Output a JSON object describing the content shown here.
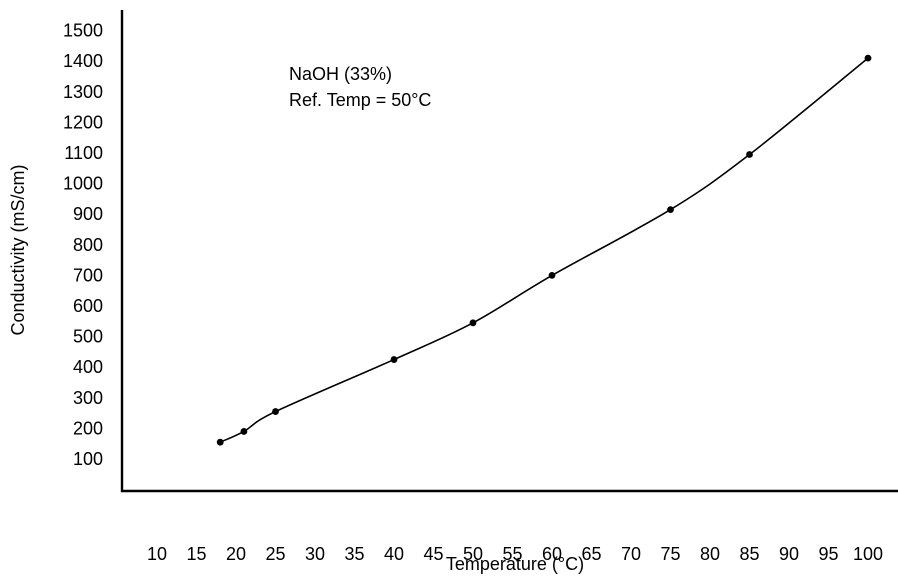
{
  "chart_data": {
    "type": "line",
    "title": "",
    "xlabel": "Temperature (°C)",
    "ylabel": "Conductivity (mS/cm)",
    "x_ticks": [
      "10",
      "15",
      "20",
      "25",
      "30",
      "35",
      "40",
      "45",
      "50",
      "55",
      "60",
      "65",
      "70",
      "75",
      "80",
      "85",
      "90",
      "95",
      "100"
    ],
    "y_ticks": [
      "100",
      "200",
      "300",
      "400",
      "500",
      "600",
      "700",
      "800",
      "900",
      "1000",
      "1100",
      "1200",
      "1300",
      "1400",
      "1500"
    ],
    "xlim": [
      10,
      100
    ],
    "ylim": [
      0,
      1500
    ],
    "annotations": [
      "NaOH (33%)",
      "Ref. Temp = 50°C"
    ],
    "grid": false,
    "series": [
      {
        "x": [
          18,
          21,
          25,
          40,
          50,
          60,
          75,
          85,
          100
        ],
        "y": [
          155,
          190,
          255,
          425,
          545,
          700,
          915,
          1095,
          1410
        ],
        "markers": true,
        "smooth": true
      }
    ],
    "colors": {
      "line": "#000000",
      "marker": "#000000",
      "axis": "#000000"
    }
  }
}
